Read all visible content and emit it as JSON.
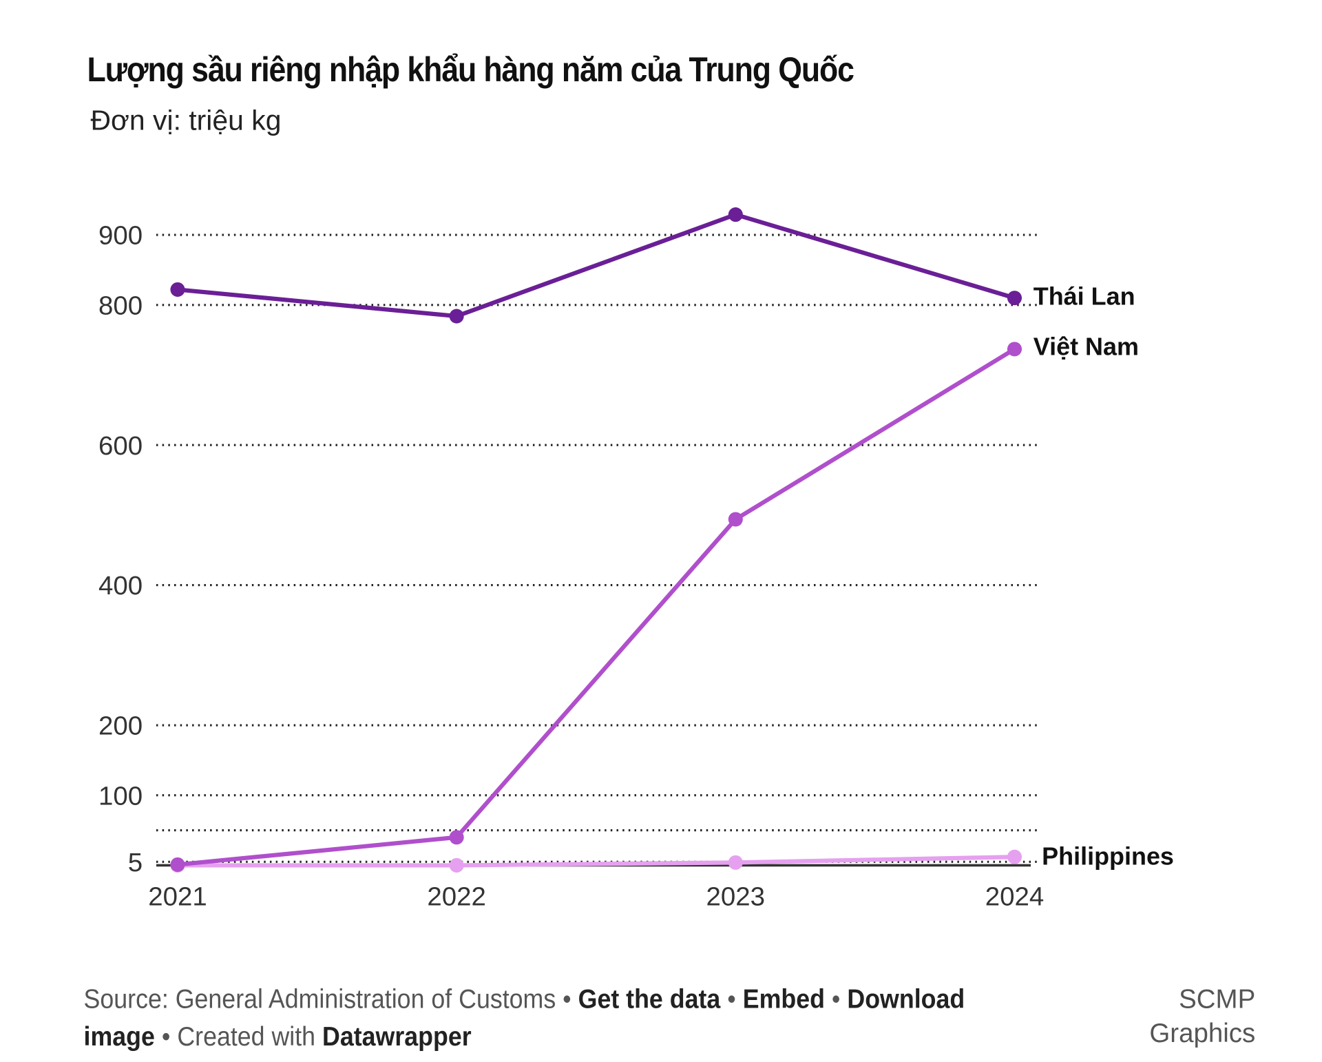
{
  "chart_data": {
    "type": "line",
    "title": "Lượng sầu riêng nhập khẩu hàng năm của Trung Quốc",
    "subtitle": "Đơn vị: triệu kg",
    "xlabel": "",
    "ylabel": "",
    "categories": [
      "2021",
      "2022",
      "2023",
      "2024"
    ],
    "y_ticks": [
      5,
      100,
      200,
      400,
      600,
      800,
      900
    ],
    "extra_gridlines": [
      50
    ],
    "ylim": [
      0,
      930
    ],
    "grid": true,
    "legend": "direct labels at line ends",
    "series": [
      {
        "name": "Thái Lan",
        "values": [
          822,
          784,
          929,
          810
        ],
        "color": "#6a1f96"
      },
      {
        "name": "Việt Nam",
        "values": [
          1,
          40,
          494,
          737
        ],
        "color": "#b04fcc"
      },
      {
        "name": "Philippines",
        "values": [
          0,
          0,
          4,
          12
        ],
        "color": "#e6a0f0"
      }
    ]
  },
  "footer": {
    "source_label": "Source: General Administration of Customs",
    "sep": "•",
    "get_data": "Get the data",
    "embed": "Embed",
    "download": "Download image",
    "created_with": "Created with",
    "datawrapper": "Datawrapper",
    "credit_line1": "SCMP",
    "credit_line2": "Graphics"
  }
}
